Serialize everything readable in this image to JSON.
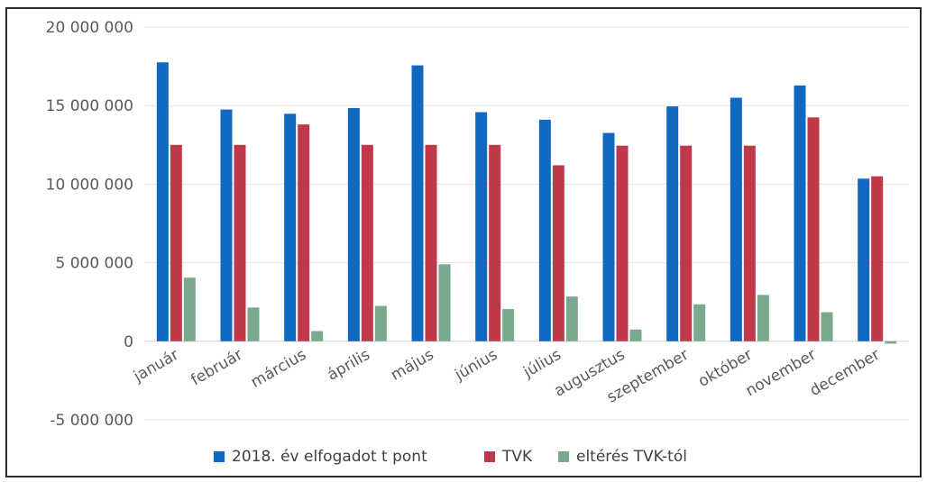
{
  "chart_data": {
    "type": "bar",
    "categories": [
      "január",
      "február",
      "március",
      "április",
      "május",
      "június",
      "július",
      "augusztus",
      "szeptember",
      "október",
      "november",
      "december"
    ],
    "series": [
      {
        "name": "2018. év elfogadot t pont",
        "color": "#1068c3",
        "values": [
          17750000,
          14750000,
          14480000,
          14840000,
          17560000,
          14580000,
          14100000,
          13260000,
          14950000,
          15500000,
          16280000,
          10350000
        ]
      },
      {
        "name": "TVK",
        "color": "#c0394b",
        "values": [
          12500000,
          12500000,
          13800000,
          12500000,
          12500000,
          12500000,
          11200000,
          12450000,
          12450000,
          12450000,
          14250000,
          10500000
        ]
      },
      {
        "name": "eltérés TVK-tól",
        "color": "#7aaa8e",
        "values": [
          4050000,
          2150000,
          650000,
          2250000,
          4900000,
          2050000,
          2850000,
          750000,
          2350000,
          2950000,
          1850000,
          -150000
        ]
      }
    ],
    "ylim": [
      -5000000,
      20000000
    ],
    "yticks": [
      20000000,
      15000000,
      10000000,
      5000000,
      0,
      -5000000
    ],
    "ytick_labels": [
      "20 000 000",
      "15 000 000",
      "10 000 000",
      "5 000 000",
      "0",
      "-5 000 000"
    ],
    "grid": true,
    "legend_position": "bottom",
    "title": "",
    "xlabel": "",
    "ylabel": ""
  }
}
